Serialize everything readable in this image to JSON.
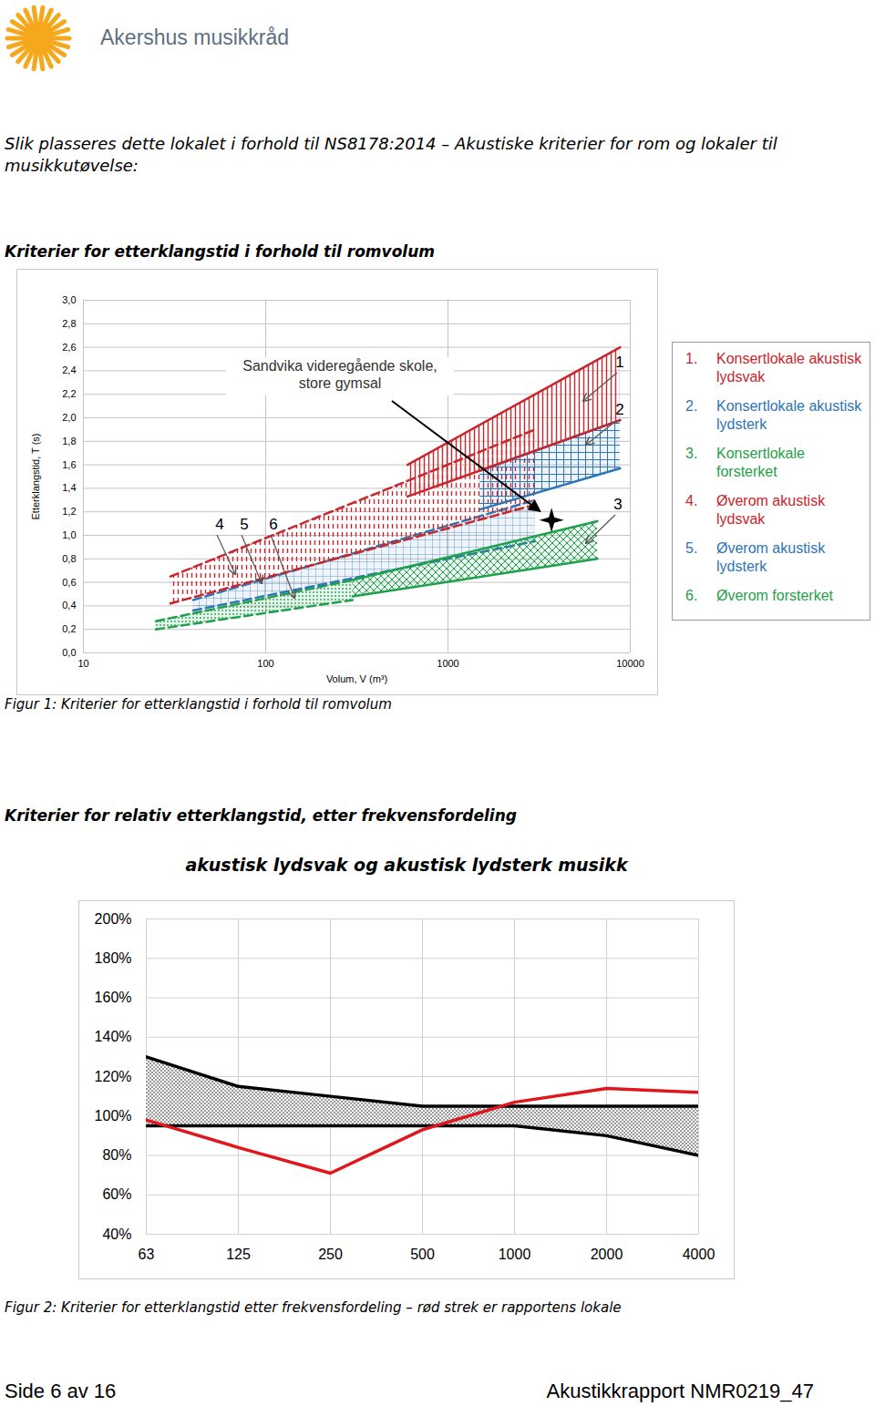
{
  "header": {
    "logo_text": "Akershus musikkråd"
  },
  "intro": "Slik plasseres dette lokalet i forhold til NS8178:2014 – Akustiske kriterier for rom og lokaler til musikkutøvelse:",
  "chart_data": [
    {
      "type": "area",
      "title": "Kriterier for etterklangstid i forhold til romvolum",
      "caption": "Figur 1: Kriterier for etterklangstid i forhold til romvolum",
      "x_label": "Volum, V (m³)",
      "y_label": "Etterklangstid, T (s)",
      "log": "x",
      "grid": true,
      "legend": "right",
      "xlim": [
        10,
        10000
      ],
      "xticks": [
        10,
        100,
        1000,
        10000
      ],
      "ylim": [
        0,
        3
      ],
      "yticks": [
        {
          "value": 0,
          "label": "0,0"
        },
        {
          "value": 0.2,
          "label": "0,2"
        },
        {
          "value": 0.4,
          "label": "0,4"
        },
        {
          "value": 0.6,
          "label": "0,6"
        },
        {
          "value": 0.8,
          "label": "0,8"
        },
        {
          "value": 1,
          "label": "1,0"
        },
        {
          "value": 1.2,
          "label": "1,2"
        },
        {
          "value": 1.4,
          "label": "1,4"
        },
        {
          "value": 1.6,
          "label": "1,6"
        },
        {
          "value": 1.8,
          "label": "1,8"
        },
        {
          "value": 2,
          "label": "2,0"
        },
        {
          "value": 2.2,
          "label": "2,2"
        },
        {
          "value": 2.4,
          "label": "2,4"
        },
        {
          "value": 2.6,
          "label": "2,6"
        },
        {
          "value": 2.8,
          "label": "2,8"
        },
        {
          "value": 3,
          "label": "3,0"
        }
      ],
      "series": [
        {
          "number": 1,
          "name": "Konsertlokale akustisk lydsvak",
          "type": "area",
          "color": "#c8262c",
          "line_style": "solid",
          "x": [
            600,
            8800
          ],
          "lower": [
            1.33,
            1.98
          ],
          "upper": [
            1.6,
            2.6
          ]
        },
        {
          "number": 2,
          "name": "Konsertlokale akustisk lydsterk",
          "type": "area",
          "color": "#2e75b6",
          "line_style": "solid",
          "x": [
            1500,
            8800
          ],
          "lower": [
            1.22,
            1.57
          ],
          "upper": [
            1.55,
            1.98
          ]
        },
        {
          "number": 3,
          "name": "Konsertlokale forsterket",
          "type": "area",
          "color": "#1fa04a",
          "line_style": "solid",
          "x": [
            300,
            6600
          ],
          "lower": [
            0.48,
            0.8
          ],
          "upper": [
            0.62,
            1.12
          ]
        },
        {
          "number": 4,
          "name": "Øverom akustisk lydsvak",
          "type": "area",
          "color": "#c8262c",
          "line_style": "dashed",
          "x": [
            30,
            3000
          ],
          "lower": [
            0.42,
            1.26
          ],
          "upper": [
            0.65,
            1.9
          ]
        },
        {
          "number": 5,
          "name": "Øverom akustisk lydsterk",
          "type": "area",
          "color": "#2e75b6",
          "line_style": "dashed",
          "x": [
            40,
            3000
          ],
          "lower": [
            0.36,
            0.95
          ],
          "upper": [
            0.45,
            1.3
          ]
        },
        {
          "number": 6,
          "name": "Øverom forsterket",
          "type": "area",
          "color": "#1fa04a",
          "line_style": "dashed",
          "x": [
            25,
            300
          ],
          "lower": [
            0.2,
            0.45
          ],
          "upper": [
            0.27,
            0.62
          ]
        },
        {
          "name": "Sandvika videregående skole, store gymsal",
          "type": "scatter",
          "marker": "star",
          "color": "#000000",
          "x": [
            3700
          ],
          "values": [
            1.13
          ]
        }
      ]
    },
    {
      "type": "line",
      "heading": "Kriterier for relativ etterklangstid, etter frekvensfordeling",
      "title": "akustisk lydsvak og akustisk lydsterk musikk",
      "caption": "Figur 2: Kriterier for etterklangstid etter frekvensfordeling – rød strek er rapportens lokale",
      "grid": true,
      "categories": [
        "63",
        "125",
        "250",
        "500",
        "1000",
        "2000",
        "4000"
      ],
      "ylim": [
        40,
        200
      ],
      "yticks": [
        {
          "value": 40,
          "label": "40%"
        },
        {
          "value": 60,
          "label": "60%"
        },
        {
          "value": 80,
          "label": "80%"
        },
        {
          "value": 100,
          "label": "100%"
        },
        {
          "value": 120,
          "label": "120%"
        },
        {
          "value": 140,
          "label": "140%"
        },
        {
          "value": 160,
          "label": "160%"
        },
        {
          "value": 180,
          "label": "180%"
        },
        {
          "value": 200,
          "label": "200%"
        }
      ],
      "series": [
        {
          "type": "area",
          "color": "#000000",
          "lower": [
            95,
            95,
            95,
            95,
            95,
            90,
            80
          ],
          "upper": [
            130,
            115,
            110,
            105,
            105,
            105,
            105
          ]
        },
        {
          "type": "line",
          "color": "#e0161c",
          "values": [
            98,
            84,
            71,
            93,
            107,
            114,
            112
          ]
        }
      ]
    }
  ],
  "footer": {
    "page": "Side 6 av 16",
    "report": "Akustikkrapport NMR0219_47"
  }
}
